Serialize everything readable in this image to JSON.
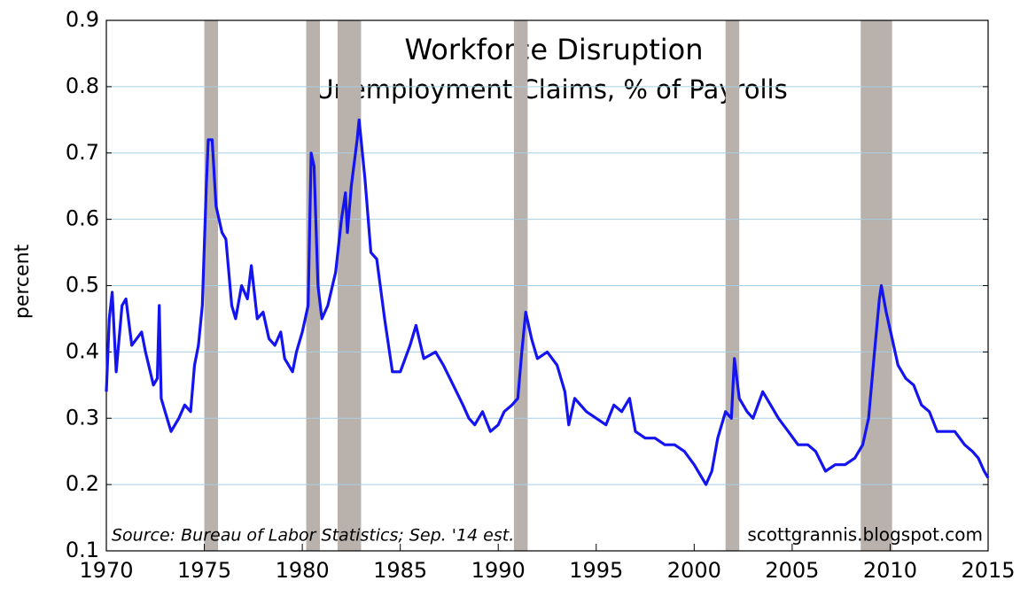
{
  "chart_data": {
    "type": "line",
    "title": "Workforce Disruption",
    "subtitle": "Unemployment Claims, % of Payrolls",
    "y_label": "percent",
    "annotations": [
      "Source: Bureau of Labor Statistics; Sep. '14 est.",
      "scottgrannis.blogspot.com"
    ],
    "xlim": [
      1970,
      2015
    ],
    "xticks": [
      1970,
      1975,
      1980,
      1985,
      1990,
      1995,
      2000,
      2005,
      2010,
      2015
    ],
    "ylim": [
      0.1,
      0.9
    ],
    "yticks": [
      0.1,
      0.2,
      0.3,
      0.4,
      0.5,
      0.6,
      0.7,
      0.8,
      0.9
    ],
    "grid": true,
    "recession_color": "#b9b1ab",
    "recessions": [
      [
        1975.0,
        1975.7
      ],
      [
        1980.2,
        1980.9
      ],
      [
        1981.8,
        1983.0
      ],
      [
        1990.8,
        1991.5
      ],
      [
        2001.6,
        2002.3
      ],
      [
        2008.5,
        2010.1
      ]
    ],
    "color": "#1414f0",
    "x": [
      1970.0,
      1970.15,
      1970.3,
      1970.5,
      1970.8,
      1971.0,
      1971.3,
      1971.8,
      1972.0,
      1972.4,
      1972.6,
      1972.7,
      1972.8,
      1973.0,
      1973.3,
      1973.7,
      1974.0,
      1974.3,
      1974.5,
      1974.7,
      1974.9,
      1975.1,
      1975.2,
      1975.4,
      1975.6,
      1975.9,
      1976.1,
      1976.4,
      1976.6,
      1976.9,
      1977.2,
      1977.4,
      1977.7,
      1978.0,
      1978.3,
      1978.6,
      1978.9,
      1979.1,
      1979.5,
      1979.7,
      1980.0,
      1980.3,
      1980.45,
      1980.6,
      1980.8,
      1981.0,
      1981.3,
      1981.7,
      1982.0,
      1982.2,
      1982.3,
      1982.5,
      1982.8,
      1982.9,
      1983.2,
      1983.5,
      1983.8,
      1984.2,
      1984.6,
      1985.0,
      1985.5,
      1985.8,
      1986.2,
      1986.8,
      1987.2,
      1987.7,
      1988.2,
      1988.5,
      1988.8,
      1989.2,
      1989.6,
      1990.0,
      1990.3,
      1990.7,
      1991.0,
      1991.2,
      1991.4,
      1991.7,
      1992.0,
      1992.5,
      1993.0,
      1993.4,
      1993.6,
      1993.9,
      1994.5,
      1995.0,
      1995.5,
      1995.9,
      1996.3,
      1996.7,
      1997.0,
      1997.5,
      1998.0,
      1998.5,
      1999.0,
      1999.5,
      2000.0,
      2000.6,
      2000.9,
      2001.2,
      2001.6,
      2001.9,
      2002.05,
      2002.3,
      2002.7,
      2003.0,
      2003.5,
      2003.9,
      2004.3,
      2004.8,
      2005.3,
      2005.8,
      2006.2,
      2006.7,
      2007.2,
      2007.7,
      2008.2,
      2008.6,
      2008.9,
      2009.2,
      2009.45,
      2009.55,
      2009.8,
      2010.1,
      2010.4,
      2010.8,
      2011.2,
      2011.6,
      2012.0,
      2012.4,
      2012.9,
      2013.3,
      2013.8,
      2014.2,
      2014.5,
      2014.8,
      2015.0
    ],
    "values": [
      0.34,
      0.45,
      0.49,
      0.37,
      0.47,
      0.48,
      0.41,
      0.43,
      0.4,
      0.35,
      0.36,
      0.47,
      0.33,
      0.31,
      0.28,
      0.3,
      0.32,
      0.31,
      0.38,
      0.41,
      0.47,
      0.65,
      0.72,
      0.72,
      0.62,
      0.58,
      0.57,
      0.47,
      0.45,
      0.5,
      0.48,
      0.53,
      0.45,
      0.46,
      0.42,
      0.41,
      0.43,
      0.39,
      0.37,
      0.4,
      0.43,
      0.47,
      0.7,
      0.68,
      0.5,
      0.45,
      0.47,
      0.52,
      0.6,
      0.64,
      0.58,
      0.65,
      0.72,
      0.75,
      0.66,
      0.55,
      0.54,
      0.45,
      0.37,
      0.37,
      0.41,
      0.44,
      0.39,
      0.4,
      0.38,
      0.35,
      0.32,
      0.3,
      0.29,
      0.31,
      0.28,
      0.29,
      0.31,
      0.32,
      0.33,
      0.4,
      0.46,
      0.42,
      0.39,
      0.4,
      0.38,
      0.34,
      0.29,
      0.33,
      0.31,
      0.3,
      0.29,
      0.32,
      0.31,
      0.33,
      0.28,
      0.27,
      0.27,
      0.26,
      0.26,
      0.25,
      0.23,
      0.2,
      0.22,
      0.27,
      0.31,
      0.3,
      0.39,
      0.33,
      0.31,
      0.3,
      0.34,
      0.32,
      0.3,
      0.28,
      0.26,
      0.26,
      0.25,
      0.22,
      0.23,
      0.23,
      0.24,
      0.26,
      0.3,
      0.4,
      0.48,
      0.5,
      0.46,
      0.42,
      0.38,
      0.36,
      0.35,
      0.32,
      0.31,
      0.28,
      0.28,
      0.28,
      0.26,
      0.25,
      0.24,
      0.22,
      0.21
    ]
  }
}
